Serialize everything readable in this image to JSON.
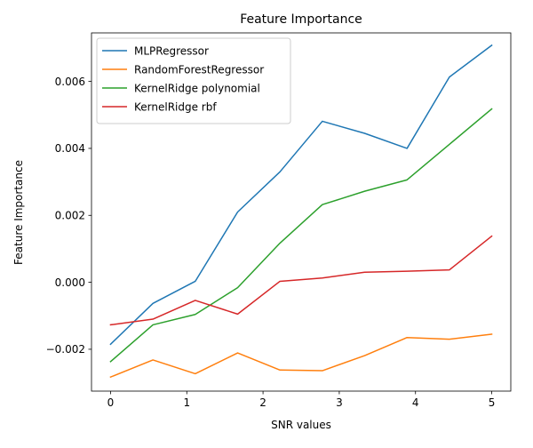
{
  "chart_data": {
    "type": "line",
    "title": "Feature Importance",
    "xlabel": "SNR values",
    "ylabel": "Feature Importance",
    "xlim": [
      -0.25,
      5.25
    ],
    "ylim": [
      -0.00325,
      0.00745
    ],
    "xticks": [
      0,
      1,
      2,
      3,
      4,
      5
    ],
    "xtick_labels": [
      "0",
      "1",
      "2",
      "3",
      "4",
      "5"
    ],
    "yticks": [
      -0.002,
      0.0,
      0.002,
      0.004,
      0.006
    ],
    "ytick_labels": [
      "−0.002",
      "0.000",
      "0.002",
      "0.004",
      "0.006"
    ],
    "grid": false,
    "legend_position": "top-left",
    "x": [
      0,
      0.556,
      1.111,
      1.667,
      2.222,
      2.778,
      3.333,
      3.889,
      4.444,
      5.0
    ],
    "series": [
      {
        "name": "MLPRegressor",
        "color": "#1f77b4",
        "values": [
          -0.00185,
          -0.00063,
          3e-05,
          0.0021,
          0.0033,
          0.00481,
          0.00445,
          0.004,
          0.00613,
          0.00708
        ]
      },
      {
        "name": "RandomForestRegressor",
        "color": "#ff7f0e",
        "values": [
          -0.00283,
          -0.00232,
          -0.00273,
          -0.00211,
          -0.00262,
          -0.00264,
          -0.00219,
          -0.00165,
          -0.0017,
          -0.00155
        ]
      },
      {
        "name": "KernelRidge polynomial",
        "color": "#2ca02c",
        "values": [
          -0.00237,
          -0.00127,
          -0.00096,
          -0.00016,
          0.00117,
          0.00232,
          0.00272,
          0.00306,
          0.00412,
          0.00518
        ]
      },
      {
        "name": "KernelRidge rbf",
        "color": "#d62728",
        "values": [
          -0.00127,
          -0.0011,
          -0.00054,
          -0.00095,
          3e-05,
          0.00013,
          0.0003,
          0.00033,
          0.00037,
          0.00138
        ]
      }
    ]
  }
}
